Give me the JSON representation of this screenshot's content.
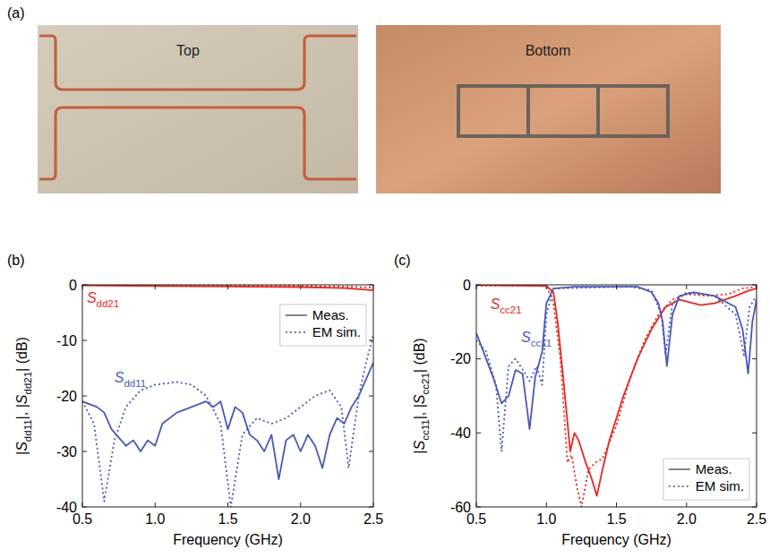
{
  "photos": {
    "panel_label": "(a)",
    "captions": [
      "Top",
      "Bottom"
    ]
  },
  "chart_data": [
    {
      "type": "line",
      "panel_label": "(b)",
      "x_label": "Frequency (GHz)",
      "y_label": "|Sdd11|, |Sdd21| (dB)",
      "xlim": [
        0.5,
        2.5
      ],
      "xticks": [
        0.5,
        {
          "value": 1,
          "label": "1.0"
        },
        1.5,
        {
          "value": 2,
          "label": "2.0"
        },
        2.5
      ],
      "ylim": [
        -40,
        0
      ],
      "yticks": [
        -40,
        -30,
        -20,
        -10,
        0
      ],
      "grid": false,
      "legend": "upper right",
      "legend_items": [
        {
          "label": "Meas.",
          "line_style": "solid"
        },
        {
          "label": "EM sim.",
          "line_style": "dotted"
        }
      ],
      "annotations": [
        {
          "text": "Sdd21",
          "x": 0.53,
          "y": -3.2,
          "color": "#e8261e"
        },
        {
          "text": "Sdd11",
          "x": 0.72,
          "y": -17.5,
          "color": "#4a58b4"
        }
      ],
      "series": [
        {
          "color": "#e8261e",
          "line_style": "solid",
          "x": [
            0.5,
            1.0,
            1.5,
            2.0,
            2.3,
            2.5
          ],
          "values": [
            -0.1,
            -0.2,
            -0.3,
            -0.4,
            -0.6,
            -1.0
          ]
        },
        {
          "color": "#e8261e",
          "line_style": "dotted",
          "x": [
            0.5,
            1.0,
            1.5,
            2.0,
            2.3,
            2.5
          ],
          "values": [
            -0.05,
            -0.1,
            -0.15,
            -0.2,
            -0.3,
            -0.5
          ]
        },
        {
          "color": "#4a58b4",
          "line_style": "solid",
          "x": [
            0.5,
            0.6,
            0.65,
            0.7,
            0.8,
            0.85,
            0.9,
            0.95,
            1.0,
            1.05,
            1.15,
            1.25,
            1.35,
            1.4,
            1.45,
            1.5,
            1.55,
            1.6,
            1.65,
            1.7,
            1.75,
            1.8,
            1.85,
            1.9,
            1.95,
            2.0,
            2.05,
            2.1,
            2.15,
            2.2,
            2.25,
            2.3,
            2.35,
            2.4,
            2.45,
            2.5
          ],
          "values": [
            -21,
            -22,
            -23,
            -26,
            -29,
            -28,
            -30,
            -28,
            -29,
            -25,
            -23,
            -22,
            -21,
            -22,
            -21,
            -26,
            -22,
            -23,
            -27,
            -28,
            -30,
            -27,
            -35,
            -28,
            -27,
            -30,
            -27,
            -29,
            -33,
            -27,
            -24,
            -25,
            -22,
            -20,
            -17,
            -14
          ]
        },
        {
          "color": "#4a58b4",
          "line_style": "dotted",
          "x": [
            0.5,
            0.58,
            0.65,
            0.72,
            0.8,
            0.9,
            1.0,
            1.15,
            1.25,
            1.35,
            1.45,
            1.52,
            1.6,
            1.7,
            1.8,
            1.9,
            2.0,
            2.1,
            2.2,
            2.28,
            2.33,
            2.4,
            2.45,
            2.5
          ],
          "values": [
            -21,
            -25,
            -39,
            -28,
            -22,
            -19,
            -18,
            -17.5,
            -18,
            -20,
            -25,
            -40,
            -27,
            -24,
            -25,
            -24,
            -22,
            -20,
            -19,
            -22,
            -33,
            -20,
            -14,
            -9
          ]
        }
      ]
    },
    {
      "type": "line",
      "panel_label": "(c)",
      "x_label": "Frequency (GHz)",
      "y_label": "|Scc11|, |Scc21| (dB)",
      "xlim": [
        0.5,
        2.5
      ],
      "xticks": [
        0.5,
        {
          "value": 1,
          "label": "1.0"
        },
        1.5,
        {
          "value": 2,
          "label": "2.0"
        },
        2.5
      ],
      "ylim": [
        -60,
        0
      ],
      "yticks": [
        -60,
        -40,
        -20,
        0
      ],
      "grid": false,
      "legend": "lower right",
      "legend_items": [
        {
          "label": "Meas.",
          "line_style": "solid"
        },
        {
          "label": "EM sim.",
          "line_style": "dotted"
        }
      ],
      "annotations": [
        {
          "text": "Scc21",
          "x": 0.6,
          "y": -6.5,
          "color": "#e8261e"
        },
        {
          "text": "Scc11",
          "x": 0.82,
          "y": -15.5,
          "color": "#4a58b4"
        }
      ],
      "series": [
        {
          "color": "#e8261e",
          "line_style": "solid",
          "x": [
            0.5,
            0.8,
            1.0,
            1.05,
            1.08,
            1.12,
            1.17,
            1.2,
            1.23,
            1.28,
            1.32,
            1.36,
            1.4,
            1.45,
            1.55,
            1.65,
            1.75,
            1.85,
            1.95,
            2.1,
            2.2,
            2.35,
            2.45,
            2.5
          ],
          "values": [
            -0.1,
            -0.2,
            -0.3,
            -2,
            -10,
            -25,
            -45,
            -40,
            -42,
            -48,
            -52,
            -57,
            -50,
            -42,
            -30,
            -20,
            -12,
            -6,
            -4,
            -5.5,
            -5,
            -3,
            -1.5,
            -1
          ]
        },
        {
          "color": "#e8261e",
          "line_style": "dotted",
          "x": [
            0.5,
            0.8,
            1.0,
            1.05,
            1.1,
            1.15,
            1.18,
            1.22,
            1.25,
            1.3,
            1.35,
            1.4,
            1.5,
            1.6,
            1.7,
            1.8,
            1.9,
            2.0,
            2.15,
            2.3,
            2.4,
            2.5
          ],
          "values": [
            -0.2,
            -0.2,
            -0.2,
            -5,
            -20,
            -48,
            -46,
            -55,
            -60,
            -50,
            -48,
            -47,
            -38,
            -25,
            -15,
            -8,
            -4,
            -2.5,
            -3,
            -2.5,
            -1,
            -0.5
          ]
        },
        {
          "color": "#4a58b4",
          "line_style": "solid",
          "x": [
            0.5,
            0.55,
            0.62,
            0.68,
            0.73,
            0.78,
            0.83,
            0.88,
            0.92,
            0.97,
            1.0,
            1.05,
            1.2,
            1.65,
            1.75,
            1.8,
            1.83,
            1.86,
            1.9,
            1.95,
            2.05,
            2.2,
            2.35,
            2.4,
            2.44,
            2.47,
            2.5
          ],
          "values": [
            -13,
            -18,
            -25,
            -32,
            -30,
            -23,
            -24,
            -39,
            -25,
            -18,
            -5,
            -1,
            -0.5,
            -0.5,
            -2,
            -5,
            -10,
            -22,
            -8,
            -3,
            -2,
            -3,
            -6,
            -12,
            -24,
            -10,
            -4
          ]
        },
        {
          "color": "#4a58b4",
          "line_style": "dotted",
          "x": [
            0.5,
            0.57,
            0.64,
            0.68,
            0.73,
            0.78,
            0.85,
            0.88,
            0.93,
            0.97,
            1.0,
            1.05,
            1.6,
            1.75,
            1.82,
            1.85,
            1.9,
            2.0,
            2.2,
            2.35,
            2.41,
            2.45,
            2.5
          ],
          "values": [
            -15,
            -18,
            -27,
            -45,
            -22,
            -20,
            -24,
            -26,
            -22,
            -27,
            -8,
            -1,
            -0.5,
            -1.5,
            -8,
            -19,
            -5,
            -2,
            -3,
            -8,
            -19,
            -6,
            -3
          ]
        }
      ]
    }
  ]
}
